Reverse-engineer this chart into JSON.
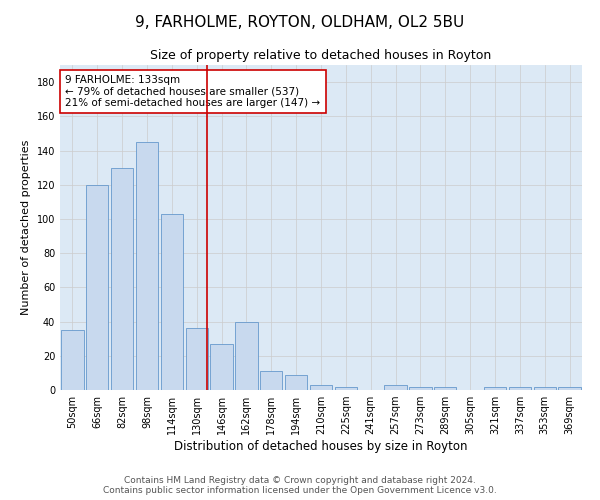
{
  "title1": "9, FARHOLME, ROYTON, OLDHAM, OL2 5BU",
  "title2": "Size of property relative to detached houses in Royton",
  "xlabel": "Distribution of detached houses by size in Royton",
  "ylabel": "Number of detached properties",
  "bar_labels": [
    "50sqm",
    "66sqm",
    "82sqm",
    "98sqm",
    "114sqm",
    "130sqm",
    "146sqm",
    "162sqm",
    "178sqm",
    "194sqm",
    "210sqm",
    "225sqm",
    "241sqm",
    "257sqm",
    "273sqm",
    "289sqm",
    "305sqm",
    "321sqm",
    "337sqm",
    "353sqm",
    "369sqm"
  ],
  "bar_values": [
    35,
    120,
    130,
    145,
    103,
    36,
    27,
    40,
    11,
    9,
    3,
    2,
    0,
    3,
    2,
    2,
    0,
    2,
    2,
    2,
    2
  ],
  "bar_color": "#c8d9ee",
  "bar_edge_color": "#6699cc",
  "vline_x_index": 5.0,
  "vline_color": "#cc0000",
  "annotation_text": "9 FARHOLME: 133sqm\n← 79% of detached houses are smaller (537)\n21% of semi-detached houses are larger (147) →",
  "annotation_box_color": "white",
  "annotation_box_edge": "#cc0000",
  "ylim": [
    0,
    190
  ],
  "yticks": [
    0,
    20,
    40,
    60,
    80,
    100,
    120,
    140,
    160,
    180
  ],
  "grid_color": "#cccccc",
  "background_color": "#dce9f5",
  "footer1": "Contains HM Land Registry data © Crown copyright and database right 2024.",
  "footer2": "Contains public sector information licensed under the Open Government Licence v3.0.",
  "title1_fontsize": 11,
  "title2_fontsize": 9,
  "xlabel_fontsize": 8.5,
  "ylabel_fontsize": 8,
  "tick_fontsize": 7,
  "annotation_fontsize": 7.5,
  "footer_fontsize": 6.5
}
